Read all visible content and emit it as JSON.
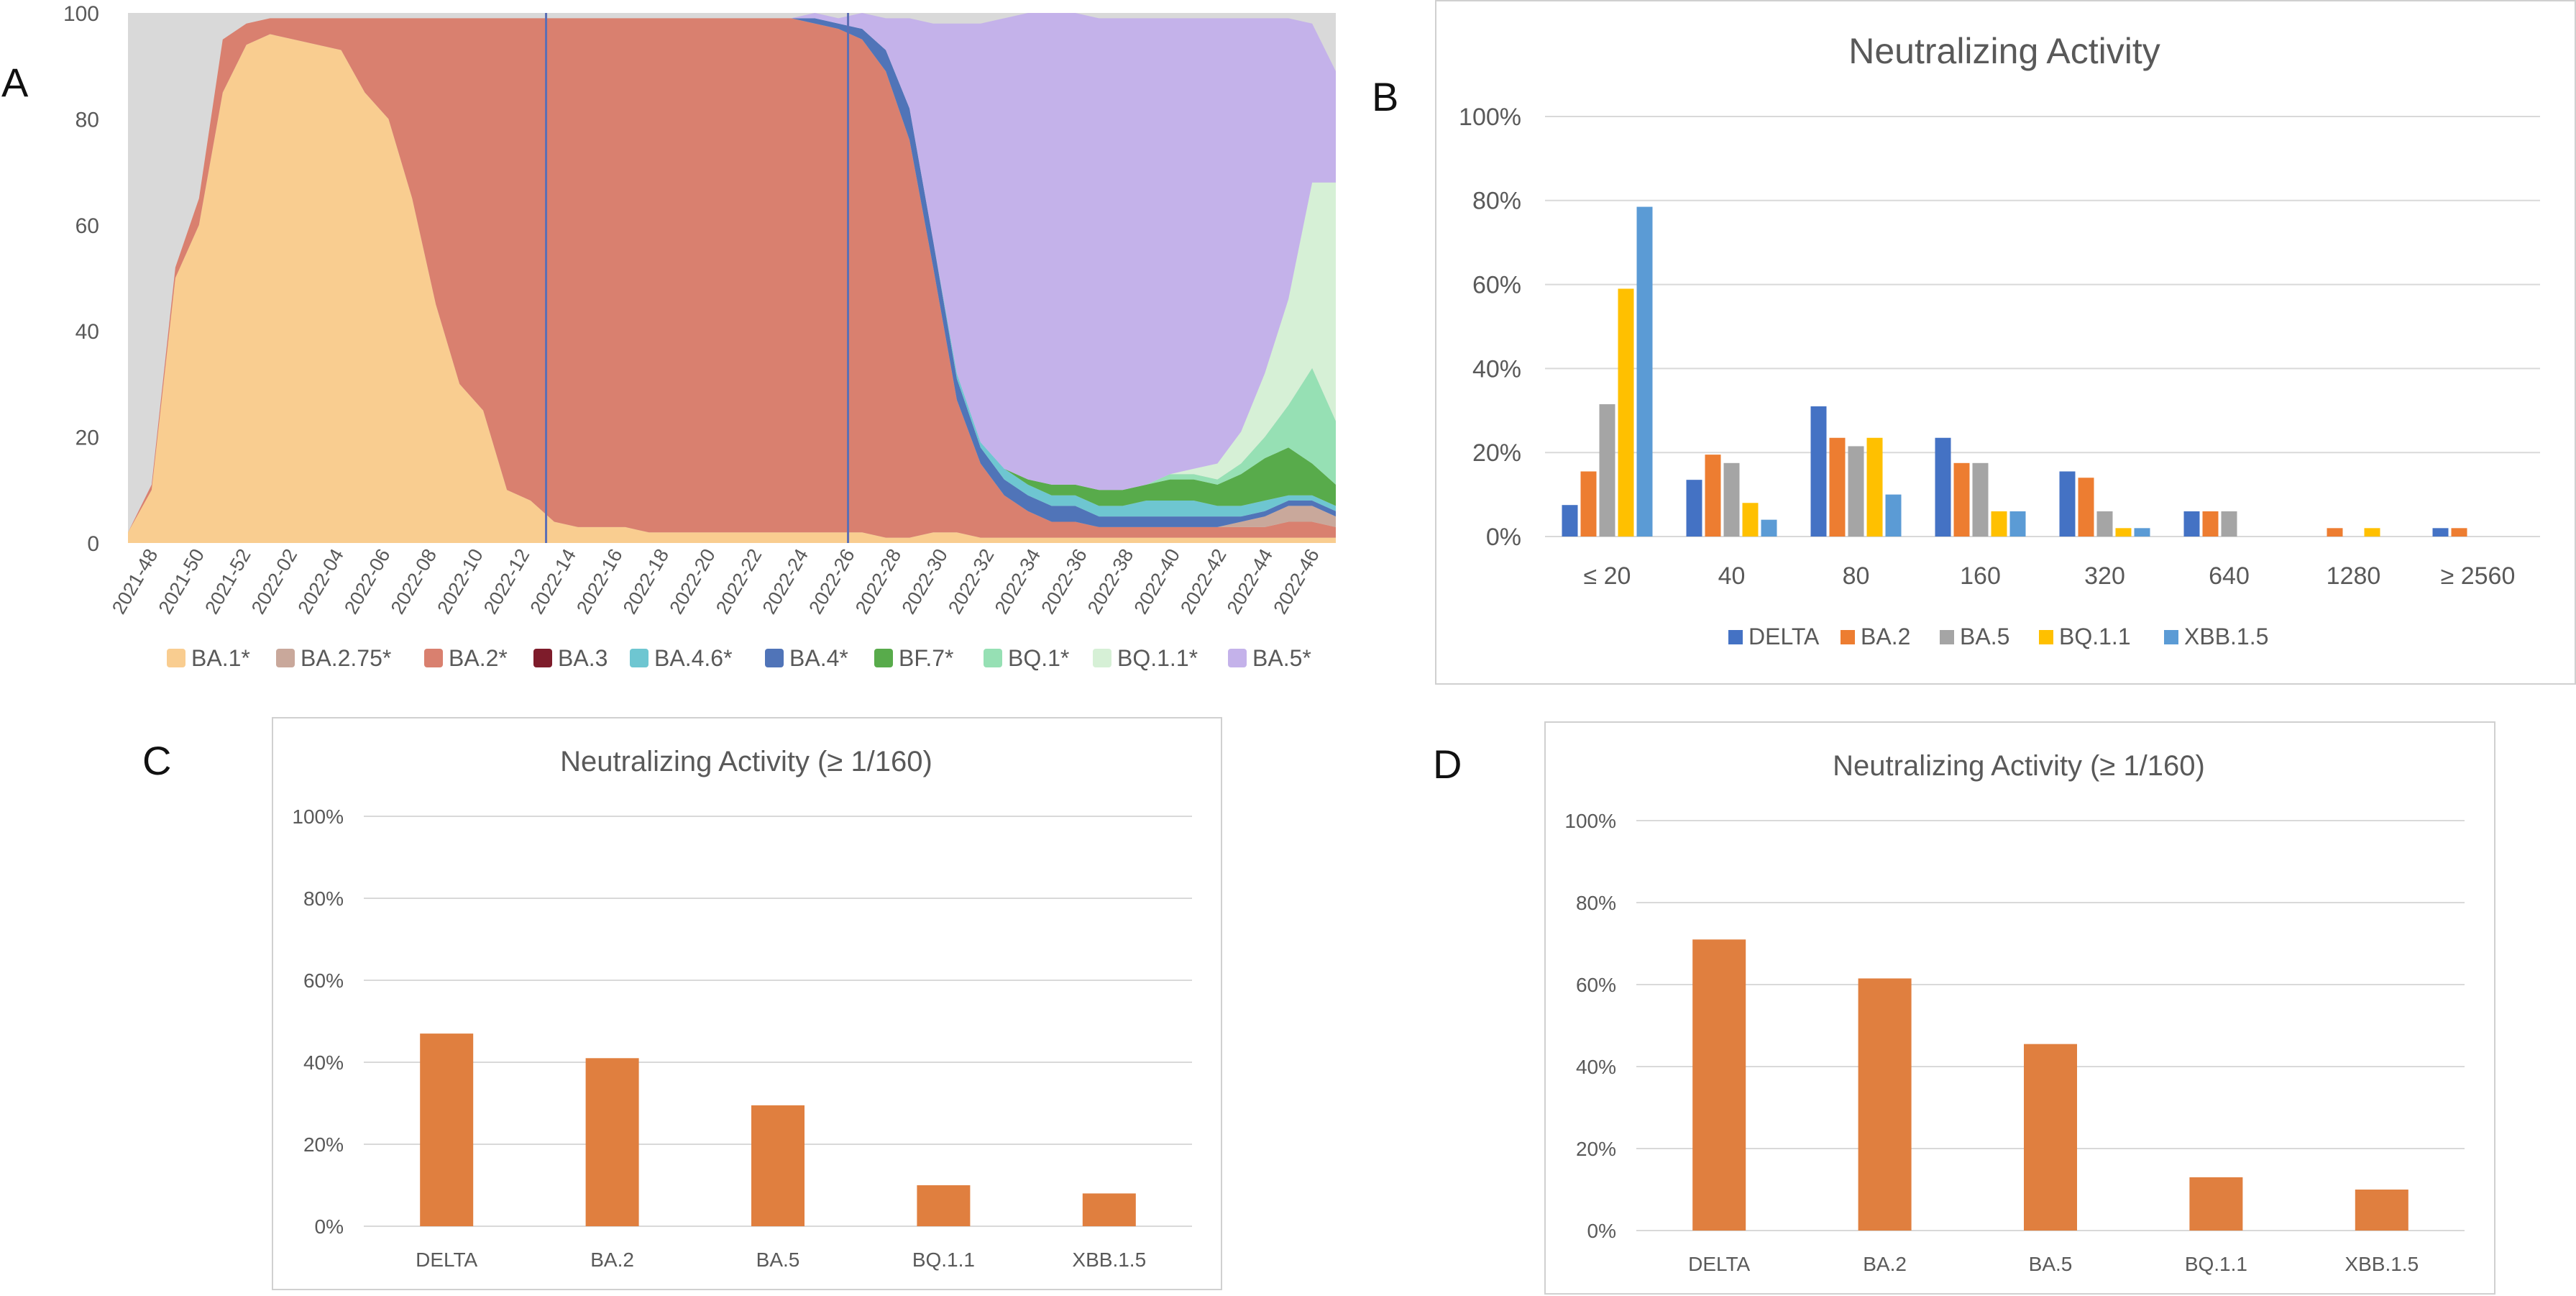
{
  "panels": {
    "a": "A",
    "b": "B",
    "c": "C",
    "d": "D"
  },
  "colors": {
    "BA.1*": "#f9cd90",
    "BA.2.75*": "#c9a89b",
    "BA.2*": "#d9806f",
    "BA.3": "#7e1c2b",
    "BA.4.6*": "#6ec6d1",
    "BA.4*": "#5074b8",
    "BF.7*": "#58ab4b",
    "BQ.1*": "#96e0b4",
    "BQ.1.1*": "#d6f0d6",
    "BA.5*": "#c4b2ea",
    "other": "#d9d9d9",
    "DELTA": "#4472c4",
    "BA.2": "#ed7d31",
    "BA.5": "#a5a5a5",
    "BQ.1.1": "#ffc000",
    "XBB.1.5": "#5b9bd5",
    "single_bar": "#e07f3f",
    "grid": "#d9d9d9",
    "vline": "#5b6fb5"
  },
  "chart_data": [
    {
      "panel": "A",
      "type": "area",
      "stacked": true,
      "title": "",
      "ylim": [
        0,
        100
      ],
      "y_ticks": [
        "0",
        "20",
        "40",
        "60",
        "80",
        "100"
      ],
      "x_ticks": [
        "2021-48",
        "2021-50",
        "2021-52",
        "2022-02",
        "2022-04",
        "2022-06",
        "2022-08",
        "2022-10",
        "2022-12",
        "2022-14",
        "2022-16",
        "2022-18",
        "2022-20",
        "2022-22",
        "2022-24",
        "2022-26",
        "2022-28",
        "2022-30",
        "2022-32",
        "2022-34",
        "2022-36",
        "2022-38",
        "2022-40",
        "2022-42",
        "2022-44",
        "2022-46"
      ],
      "vertical_lines": [
        "2022-13",
        "2022-26"
      ],
      "legend_position": "bottom",
      "legend": [
        "BA.1*",
        "BA.2.75*",
        "BA.2*",
        "BA.3",
        "BA.4.6*",
        "BA.4*",
        "BF.7*",
        "BQ.1*",
        "BQ.1.1*",
        "BA.5*"
      ],
      "series": [
        {
          "name": "BA.1*",
          "values": [
            2,
            10,
            50,
            60,
            85,
            94,
            96,
            95,
            94,
            93,
            85,
            80,
            65,
            45,
            30,
            25,
            10,
            8,
            4,
            3,
            3,
            3,
            2,
            2,
            2,
            2,
            2,
            2,
            2,
            2,
            2,
            2,
            1,
            1,
            2,
            2,
            1,
            1,
            1,
            1,
            1,
            1,
            1,
            1,
            1,
            1,
            1,
            1,
            1,
            1,
            1,
            1
          ]
        },
        {
          "name": "BA.2*",
          "values": [
            0,
            1,
            2,
            5,
            10,
            4,
            3,
            4,
            5,
            6,
            14,
            19,
            34,
            54,
            69,
            74,
            89,
            91,
            95,
            96,
            96,
            96,
            97,
            97,
            97,
            97,
            97,
            97,
            97,
            96,
            95,
            93,
            88,
            75,
            50,
            25,
            14,
            8,
            5,
            3,
            3,
            2,
            2,
            2,
            2,
            2,
            2,
            2,
            2,
            3,
            3,
            2
          ]
        },
        {
          "name": "BA.2.75*",
          "values": [
            0,
            0,
            0,
            0,
            0,
            0,
            0,
            0,
            0,
            0,
            0,
            0,
            0,
            0,
            0,
            0,
            0,
            0,
            0,
            0,
            0,
            0,
            0,
            0,
            0,
            0,
            0,
            0,
            0,
            0,
            0,
            0,
            0,
            0,
            0,
            0,
            0,
            0,
            0,
            0,
            0,
            0,
            0,
            0,
            0,
            0,
            0,
            1,
            2,
            3,
            3,
            2
          ]
        },
        {
          "name": "BA.4*",
          "values": [
            0,
            0,
            0,
            0,
            0,
            0,
            0,
            0,
            0,
            0,
            0,
            0,
            0,
            0,
            0,
            0,
            0,
            0,
            0,
            0,
            0,
            0,
            0,
            0,
            0,
            0,
            0,
            0,
            0,
            1,
            1,
            2,
            4,
            6,
            5,
            4,
            3,
            3,
            3,
            3,
            3,
            2,
            2,
            2,
            2,
            2,
            2,
            1,
            1,
            1,
            1,
            1
          ]
        },
        {
          "name": "BA.4.6*",
          "values": [
            0,
            0,
            0,
            0,
            0,
            0,
            0,
            0,
            0,
            0,
            0,
            0,
            0,
            0,
            0,
            0,
            0,
            0,
            0,
            0,
            0,
            0,
            0,
            0,
            0,
            0,
            0,
            0,
            0,
            0,
            0,
            0,
            0,
            0,
            0,
            1,
            1,
            2,
            2,
            2,
            2,
            2,
            2,
            3,
            3,
            3,
            2,
            2,
            2,
            1,
            1,
            1
          ]
        },
        {
          "name": "BF.7*",
          "values": [
            0,
            0,
            0,
            0,
            0,
            0,
            0,
            0,
            0,
            0,
            0,
            0,
            0,
            0,
            0,
            0,
            0,
            0,
            0,
            0,
            0,
            0,
            0,
            0,
            0,
            0,
            0,
            0,
            0,
            0,
            0,
            0,
            0,
            0,
            0,
            0,
            0,
            0,
            1,
            2,
            2,
            3,
            3,
            3,
            4,
            4,
            4,
            6,
            8,
            9,
            6,
            4
          ]
        },
        {
          "name": "BQ.1*",
          "values": [
            0,
            0,
            0,
            0,
            0,
            0,
            0,
            0,
            0,
            0,
            0,
            0,
            0,
            0,
            0,
            0,
            0,
            0,
            0,
            0,
            0,
            0,
            0,
            0,
            0,
            0,
            0,
            0,
            0,
            0,
            0,
            0,
            0,
            0,
            0,
            0,
            0,
            0,
            0,
            0,
            0,
            0,
            0,
            0,
            1,
            1,
            1,
            2,
            4,
            8,
            18,
            12
          ]
        },
        {
          "name": "BQ.1.1*",
          "values": [
            0,
            0,
            0,
            0,
            0,
            0,
            0,
            0,
            0,
            0,
            0,
            0,
            0,
            0,
            0,
            0,
            0,
            0,
            0,
            0,
            0,
            0,
            0,
            0,
            0,
            0,
            0,
            0,
            0,
            0,
            0,
            0,
            0,
            0,
            0,
            0,
            0,
            0,
            0,
            0,
            0,
            0,
            0,
            0,
            0,
            1,
            3,
            6,
            12,
            20,
            35,
            45
          ]
        },
        {
          "name": "BA.5*",
          "values": [
            0,
            0,
            0,
            0,
            0,
            0,
            0,
            0,
            0,
            0,
            0,
            0,
            0,
            0,
            0,
            0,
            0,
            0,
            0,
            0,
            0,
            0,
            0,
            0,
            0,
            0,
            0,
            0,
            0,
            1,
            1,
            3,
            6,
            17,
            41,
            66,
            79,
            85,
            88,
            89,
            89,
            89,
            89,
            88,
            86,
            85,
            84,
            78,
            67,
            53,
            30,
            21
          ]
        },
        {
          "name": "BA.3",
          "values": [
            0,
            0,
            0,
            0,
            0,
            0,
            0,
            0,
            0,
            0,
            0,
            0,
            0,
            0,
            0,
            0,
            0,
            0,
            0,
            0,
            0,
            0,
            0,
            0,
            0,
            0,
            0,
            0,
            0,
            0,
            0,
            0,
            0,
            0,
            0,
            0,
            0,
            0,
            0,
            0,
            0,
            0,
            0,
            0,
            0,
            0,
            0,
            0,
            0,
            0,
            0,
            0
          ]
        }
      ]
    },
    {
      "panel": "B",
      "type": "bar",
      "title": "Neutralizing Activity",
      "ylim": [
        0,
        100
      ],
      "y_ticks": [
        "0%",
        "20%",
        "40%",
        "60%",
        "80%",
        "100%"
      ],
      "categories": [
        "≤ 20",
        "40",
        "80",
        "160",
        "320",
        "640",
        "1280",
        "≥ 2560"
      ],
      "legend_position": "bottom",
      "series": [
        {
          "name": "DELTA",
          "values": [
            7.5,
            13.5,
            31,
            23.5,
            15.5,
            6,
            0,
            2
          ]
        },
        {
          "name": "BA.2",
          "values": [
            15.5,
            19.5,
            23.5,
            17.5,
            14,
            6,
            2,
            2
          ]
        },
        {
          "name": "BA.5",
          "values": [
            31.5,
            17.5,
            21.5,
            17.5,
            6,
            6,
            0,
            0
          ]
        },
        {
          "name": "BQ.1.1",
          "values": [
            59,
            8,
            23.5,
            6,
            2,
            0,
            2,
            0
          ]
        },
        {
          "name": "XBB.1.5",
          "values": [
            78.5,
            4,
            10,
            6,
            2,
            0,
            0,
            0
          ]
        }
      ]
    },
    {
      "panel": "C",
      "type": "bar",
      "title": "Neutralizing Activity (≥ 1/160)",
      "ylim": [
        0,
        100
      ],
      "y_ticks": [
        "0%",
        "20%",
        "40%",
        "60%",
        "80%",
        "100%"
      ],
      "categories": [
        "DELTA",
        "BA.2",
        "BA.5",
        "BQ.1.1",
        "XBB.1.5"
      ],
      "values": [
        47,
        41,
        29.5,
        10,
        8
      ]
    },
    {
      "panel": "D",
      "type": "bar",
      "title": "Neutralizing Activity (≥ 1/160)",
      "ylim": [
        0,
        100
      ],
      "y_ticks": [
        "0%",
        "20%",
        "40%",
        "60%",
        "80%",
        "100%"
      ],
      "categories": [
        "DELTA",
        "BA.2",
        "BA.5",
        "BQ.1.1",
        "XBB.1.5"
      ],
      "values": [
        71,
        61.5,
        45.5,
        13,
        10
      ]
    }
  ]
}
